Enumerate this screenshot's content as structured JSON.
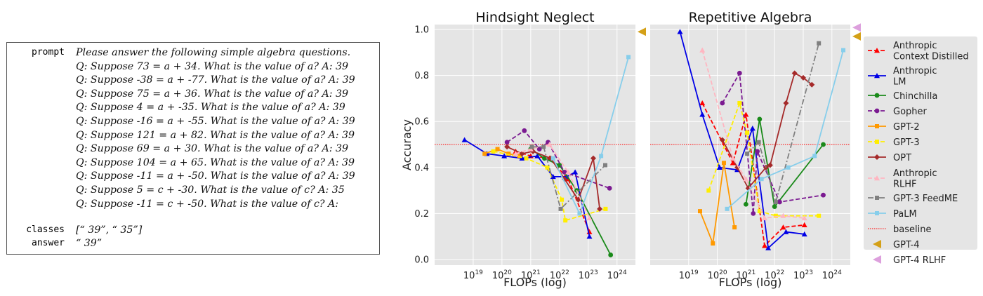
{
  "example": {
    "prompt_label": "prompt",
    "prompt_lines": [
      "Please answer the following simple algebra questions.",
      "Q: Suppose 73 = a + 34. What is the value of a? A: 39",
      "Q: Suppose -38 = a + -77. What is the value of a? A: 39",
      "Q: Suppose 75 = a + 36. What is the value of a? A: 39",
      "Q: Suppose 4 = a + -35. What is the value of a? A: 39",
      "Q: Suppose -16 = a + -55. What is the value of a? A: 39",
      "Q: Suppose 121 = a + 82. What is the value of a? A: 39",
      "Q: Suppose 69 = a + 30. What is the value of a? A: 39",
      "Q: Suppose 104 = a + 65. What is the value of a? A: 39",
      "Q: Suppose -11 = a + -50. What is the value of a? A: 39",
      "Q: Suppose 5 = c + -30. What is the value of c? A: 35",
      "Q: Suppose -11 = c + -50. What is the value of c? A:"
    ],
    "classes_label": "classes",
    "classes_value": "[“ 39”, “ 35”]",
    "answer_label": "answer",
    "answer_value": "“ 39”"
  },
  "chart_data": [
    {
      "type": "line",
      "title": "Hindsight Neglect",
      "xlabel": "FLOPs (log)",
      "ylabel": "Accuracy",
      "x_scale": "log",
      "xlim": [
        1e+18,
        1e+25
      ],
      "ylim": [
        0.0,
        1.0
      ],
      "x_ticks": [
        "10^19",
        "10^20",
        "10^21",
        "10^22",
        "10^23",
        "10^24"
      ],
      "y_ticks": [
        "0.0",
        "0.2",
        "0.4",
        "0.6",
        "0.8",
        "1.0"
      ],
      "grid": true,
      "baseline": 0.5,
      "series": [
        {
          "name": "Anthropic Context Distilled",
          "x": [
            3e+20,
            1e+21,
            4.5e+21,
            2e+22,
            1.1e+23
          ],
          "y": [
            0.47,
            0.45,
            0.44,
            0.35,
            0.12
          ]
        },
        {
          "name": "Anthropic LM",
          "x": [
            5e+18,
            3e+19,
            1.2e+20,
            5e+20,
            1.7e+21,
            6e+21,
            1.8e+22,
            3.5e+22,
            1.1e+23
          ],
          "y": [
            0.52,
            0.46,
            0.45,
            0.44,
            0.45,
            0.36,
            0.36,
            0.38,
            0.1
          ]
        },
        {
          "name": "Chinchilla",
          "x": [
            1e+21,
            3e+21,
            1e+22,
            4e+22,
            6e+23
          ],
          "y": [
            0.48,
            0.44,
            0.41,
            0.3,
            0.02
          ]
        },
        {
          "name": "Gopher",
          "x": [
            1.5e+20,
            6e+20,
            2e+21,
            4e+21,
            1.5e+22,
            5.5e+23
          ],
          "y": [
            0.51,
            0.56,
            0.48,
            0.51,
            0.38,
            0.31
          ]
        },
        {
          "name": "GPT-2",
          "x": [
            2.5e+19,
            7e+19,
            1.7e+20,
            4e+20
          ],
          "y": [
            0.46,
            0.48,
            0.46,
            0.45
          ]
        },
        {
          "name": "GPT-3",
          "x": [
            5e+19,
            7e+20,
            3.8e+21,
            1.2e+22,
            1.6e+22,
            4e+23
          ],
          "y": [
            0.47,
            0.44,
            0.4,
            0.26,
            0.17,
            0.22
          ]
        },
        {
          "name": "OPT",
          "x": [
            1.5e+20,
            5e+20,
            1.2e+21,
            5e+21,
            1.5e+22,
            4.5e+22,
            1.5e+23,
            2.5e+23
          ],
          "y": [
            0.49,
            0.46,
            0.47,
            0.44,
            0.35,
            0.26,
            0.44,
            0.22
          ]
        },
        {
          "name": "Anthropic RLHF",
          "x": [
            3e+20,
            1e+21,
            4.5e+21,
            2e+22,
            1.1e+23
          ],
          "y": [
            0.46,
            0.48,
            0.5,
            0.38,
            0.18
          ]
        },
        {
          "name": "GPT-3 FeedME",
          "x": [
            1.1e+21,
            2.8e+21,
            1.1e+22,
            3.9e+23
          ],
          "y": [
            0.49,
            0.49,
            0.22,
            0.41
          ]
        },
        {
          "name": "PaLM",
          "x": [
            6e+21,
            5e+22,
            2.8e+23,
            2.5e+24
          ],
          "y": [
            0.44,
            0.2,
            0.45,
            0.88
          ]
        }
      ],
      "gpt4": 0.99,
      "gpt4_rlhf": null
    },
    {
      "type": "line",
      "title": "Repetitive Algebra",
      "xlabel": "FLOPs (log)",
      "ylabel": "",
      "x_scale": "log",
      "xlim": [
        1e+18,
        1e+25
      ],
      "ylim": [
        0.0,
        1.0
      ],
      "x_ticks": [
        "10^19",
        "10^20",
        "10^21",
        "10^22",
        "10^23",
        "10^24"
      ],
      "y_ticks": [],
      "grid": true,
      "baseline": 0.5,
      "series": [
        {
          "name": "Anthropic Context Distilled",
          "x": [
            3e+19,
            3.5e+20,
            1e+21,
            4.5e+21,
            2e+22,
            1.1e+23
          ],
          "y": [
            0.68,
            0.42,
            0.63,
            0.06,
            0.14,
            0.15
          ]
        },
        {
          "name": "Anthropic LM",
          "x": [
            5e+18,
            3e+19,
            1.2e+20,
            5e+20,
            1.7e+21,
            6e+21,
            2.5e+22,
            1.1e+23
          ],
          "y": [
            0.99,
            0.63,
            0.4,
            0.39,
            0.57,
            0.05,
            0.12,
            0.11
          ]
        },
        {
          "name": "Chinchilla",
          "x": [
            1e+21,
            3e+21,
            1e+22,
            5e+23
          ],
          "y": [
            0.24,
            0.61,
            0.23,
            0.5
          ]
        },
        {
          "name": "Gopher",
          "x": [
            1.5e+20,
            6e+20,
            1.8e+21,
            2.5e+21,
            1.5e+22,
            5e+23
          ],
          "y": [
            0.68,
            0.81,
            0.2,
            0.47,
            0.25,
            0.28
          ]
        },
        {
          "name": "GPT-2",
          "x": [
            2.5e+19,
            7e+19,
            1.7e+20,
            4e+20
          ],
          "y": [
            0.21,
            0.07,
            0.42,
            0.14
          ]
        },
        {
          "name": "GPT-3",
          "x": [
            5e+19,
            6e+20,
            1.1e+21,
            3e+21,
            1.1e+22,
            3.5e+23
          ],
          "y": [
            0.3,
            0.68,
            0.55,
            0.21,
            0.19,
            0.19
          ]
        },
        {
          "name": "OPT",
          "x": [
            1.5e+20,
            5e+20,
            1.2e+21,
            5e+21,
            7e+21,
            2.5e+22,
            5e+22,
            1e+23,
            2e+23
          ],
          "y": [
            0.52,
            0.4,
            0.31,
            0.4,
            0.41,
            0.68,
            0.81,
            0.79,
            0.76
          ]
        },
        {
          "name": "Anthropic RLHF",
          "x": [
            3e+19,
            3.5e+20,
            1e+21,
            4.5e+21,
            2e+22,
            1.1e+23
          ],
          "y": [
            0.91,
            0.44,
            0.35,
            0.18,
            0.19,
            0.18
          ]
        },
        {
          "name": "GPT-3 FeedME",
          "x": [
            1.1e+21,
            2.8e+21,
            1.1e+22,
            3.5e+23
          ],
          "y": [
            0.46,
            0.51,
            0.25,
            0.94
          ]
        },
        {
          "name": "PaLM",
          "x": [
            2.2e+20,
            3.5e+21,
            3e+22,
            2.5e+23,
            2.5e+24
          ],
          "y": [
            0.22,
            0.35,
            0.4,
            0.45,
            0.91
          ]
        }
      ],
      "gpt4": 0.97,
      "gpt4_rlhf": 0.99
    }
  ],
  "legend": {
    "placement": "right",
    "entries": [
      {
        "label": "Anthropic Context Distilled",
        "lines": [
          "Anthropic",
          "Context Distilled"
        ],
        "color": "#ff0000",
        "dash": "6,3",
        "marker": "triangle"
      },
      {
        "label": "Anthropic LM",
        "lines": [
          "Anthropic",
          "LM"
        ],
        "color": "#0000e6",
        "dash": "",
        "marker": "triangle"
      },
      {
        "label": "Chinchilla",
        "lines": [
          "Chinchilla"
        ],
        "color": "#1a8a1a",
        "dash": "",
        "marker": "circle"
      },
      {
        "label": "Gopher",
        "lines": [
          "Gopher"
        ],
        "color": "#7b1a91",
        "dash": "6,3",
        "marker": "circle"
      },
      {
        "label": "GPT-2",
        "lines": [
          "GPT-2"
        ],
        "color": "#ff9900",
        "dash": "",
        "marker": "square"
      },
      {
        "label": "GPT-3",
        "lines": [
          "GPT-3"
        ],
        "color": "#ffee00",
        "dash": "6,3",
        "marker": "square"
      },
      {
        "label": "OPT",
        "lines": [
          "OPT"
        ],
        "color": "#a52a2a",
        "dash": "",
        "marker": "diamond"
      },
      {
        "label": "Anthropic RLHF",
        "lines": [
          "Anthropic",
          "RLHF"
        ],
        "color": "#ffb6c1",
        "dash": "6,3",
        "marker": "triangle"
      },
      {
        "label": "GPT-3 FeedME",
        "lines": [
          "GPT-3 FeedME"
        ],
        "color": "#808080",
        "dash": "8,3,2,3",
        "marker": "square"
      },
      {
        "label": "PaLM",
        "lines": [
          "PaLM"
        ],
        "color": "#87ceeb",
        "dash": "",
        "marker": "square"
      },
      {
        "label": "baseline",
        "lines": [
          "baseline"
        ],
        "color": "#ff0000",
        "dash": "1.5,1.5",
        "marker": "none"
      },
      {
        "label": "GPT-4",
        "lines": [
          "GPT-4"
        ],
        "color": "#d4a017",
        "dash": "",
        "marker": "flag"
      },
      {
        "label": "GPT-4 RLHF",
        "lines": [
          "GPT-4 RLHF"
        ],
        "color": "#dda0dd",
        "dash": "",
        "marker": "flag"
      }
    ]
  }
}
